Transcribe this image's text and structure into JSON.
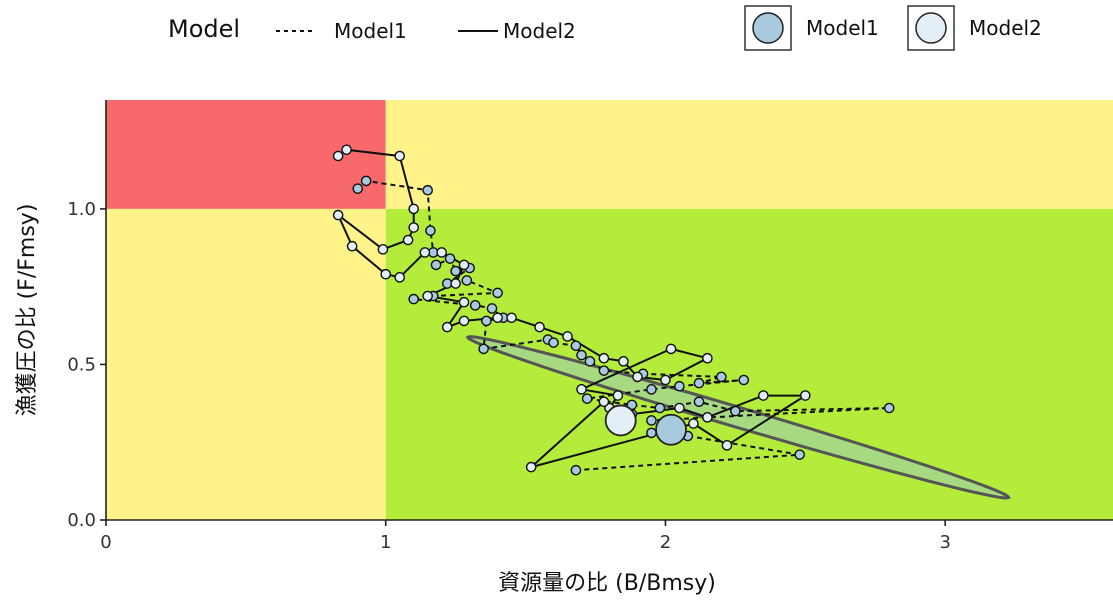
{
  "chart_data": {
    "type": "scatter",
    "xlabel": "資源量の比 (B/Bmsy)",
    "ylabel": "漁獲圧の比 (F/Fmsy)",
    "xlim": [
      0,
      3.6
    ],
    "ylim": [
      0,
      1.35
    ],
    "x_ticks": [
      0,
      1,
      2,
      3
    ],
    "y_ticks": [
      0.0,
      0.5,
      1.0
    ],
    "x_tick_labels": [
      "0",
      "1",
      "2",
      "3"
    ],
    "y_tick_labels": [
      "0.0",
      "0.5",
      "1.0"
    ],
    "zones": [
      {
        "name": "overfished_overfishing",
        "x": [
          0,
          1
        ],
        "y": [
          1.0,
          1.35
        ],
        "color": "#F8696B"
      },
      {
        "name": "overfished",
        "x": [
          0,
          1
        ],
        "y": [
          0,
          1.0
        ],
        "color": "#FFF38A"
      },
      {
        "name": "overfishing",
        "x": [
          1,
          3.6
        ],
        "y": [
          1.0,
          1.35
        ],
        "color": "#FFF38A"
      },
      {
        "name": "healthy",
        "x": [
          1,
          3.6
        ],
        "y": [
          0,
          1.0
        ],
        "color": "#B4EC3C"
      }
    ],
    "legend": {
      "linetype_title": "Model",
      "linetype_entries": [
        {
          "label": "Model1",
          "dash": "dashed"
        },
        {
          "label": "Model2",
          "dash": "solid"
        }
      ],
      "fill_entries": [
        {
          "label": "Model1",
          "color": "#A7CADE"
        },
        {
          "label": "Model2",
          "color": "#E4EEF7"
        }
      ],
      "placement": "top"
    },
    "series": [
      {
        "name": "Model1",
        "line": "dashed",
        "point_color": "#A7CADE",
        "points": [
          [
            0.9,
            1.065
          ],
          [
            0.93,
            1.09
          ],
          [
            1.15,
            1.06
          ],
          [
            1.16,
            0.93
          ],
          [
            1.17,
            0.86
          ],
          [
            1.18,
            0.82
          ],
          [
            1.23,
            0.84
          ],
          [
            1.25,
            0.8
          ],
          [
            1.3,
            0.81
          ],
          [
            1.22,
            0.76
          ],
          [
            1.29,
            0.77
          ],
          [
            1.4,
            0.73
          ],
          [
            1.17,
            0.72
          ],
          [
            1.1,
            0.71
          ],
          [
            1.32,
            0.69
          ],
          [
            1.38,
            0.68
          ],
          [
            1.42,
            0.65
          ],
          [
            1.36,
            0.64
          ],
          [
            1.35,
            0.55
          ],
          [
            1.58,
            0.58
          ],
          [
            1.6,
            0.57
          ],
          [
            1.68,
            0.56
          ],
          [
            1.7,
            0.53
          ],
          [
            1.73,
            0.51
          ],
          [
            1.78,
            0.48
          ],
          [
            1.92,
            0.47
          ],
          [
            2.2,
            0.46
          ],
          [
            2.12,
            0.44
          ],
          [
            2.28,
            0.45
          ],
          [
            2.05,
            0.43
          ],
          [
            1.95,
            0.42
          ],
          [
            1.72,
            0.39
          ],
          [
            1.88,
            0.37
          ],
          [
            1.98,
            0.36
          ],
          [
            2.12,
            0.38
          ],
          [
            2.25,
            0.35
          ],
          [
            2.8,
            0.36
          ],
          [
            1.95,
            0.32
          ],
          [
            2.02,
            0.32
          ],
          [
            1.95,
            0.28
          ],
          [
            2.08,
            0.27
          ],
          [
            2.48,
            0.21
          ],
          [
            1.68,
            0.16
          ]
        ]
      },
      {
        "name": "Model2",
        "line": "solid",
        "point_color": "#E4EEF7",
        "points": [
          [
            0.83,
            1.17
          ],
          [
            0.86,
            1.19
          ],
          [
            1.05,
            1.17
          ],
          [
            1.1,
            1.0
          ],
          [
            1.1,
            0.94
          ],
          [
            1.08,
            0.9
          ],
          [
            0.99,
            0.87
          ],
          [
            0.83,
            0.98
          ],
          [
            0.88,
            0.88
          ],
          [
            1.0,
            0.79
          ],
          [
            1.05,
            0.78
          ],
          [
            1.14,
            0.86
          ],
          [
            1.2,
            0.86
          ],
          [
            1.28,
            0.82
          ],
          [
            1.25,
            0.76
          ],
          [
            1.15,
            0.72
          ],
          [
            1.28,
            0.7
          ],
          [
            1.22,
            0.62
          ],
          [
            1.28,
            0.64
          ],
          [
            1.4,
            0.65
          ],
          [
            1.45,
            0.65
          ],
          [
            1.55,
            0.62
          ],
          [
            1.65,
            0.59
          ],
          [
            1.78,
            0.52
          ],
          [
            1.85,
            0.51
          ],
          [
            1.9,
            0.46
          ],
          [
            2.0,
            0.45
          ],
          [
            2.15,
            0.52
          ],
          [
            2.02,
            0.55
          ],
          [
            1.7,
            0.42
          ],
          [
            1.83,
            0.4
          ],
          [
            1.8,
            0.36
          ],
          [
            1.88,
            0.34
          ],
          [
            2.05,
            0.36
          ],
          [
            2.15,
            0.33
          ],
          [
            2.35,
            0.4
          ],
          [
            2.5,
            0.4
          ],
          [
            2.22,
            0.24
          ],
          [
            2.1,
            0.31
          ],
          [
            1.52,
            0.17
          ],
          [
            1.78,
            0.38
          ]
        ]
      }
    ],
    "current_points": [
      {
        "name": "Model1",
        "x": 2.02,
        "y": 0.29,
        "color": "#A7CADE"
      },
      {
        "name": "Model2",
        "x": 1.84,
        "y": 0.32,
        "color": "#E4EEF7"
      }
    ],
    "confidence_ellipse": {
      "center": [
        2.26,
        0.33
      ],
      "semi_major": 1.05,
      "semi_minor": 0.032,
      "angle_deg": -16.5,
      "fill": "#A3D68C",
      "stroke": "#555555"
    }
  }
}
